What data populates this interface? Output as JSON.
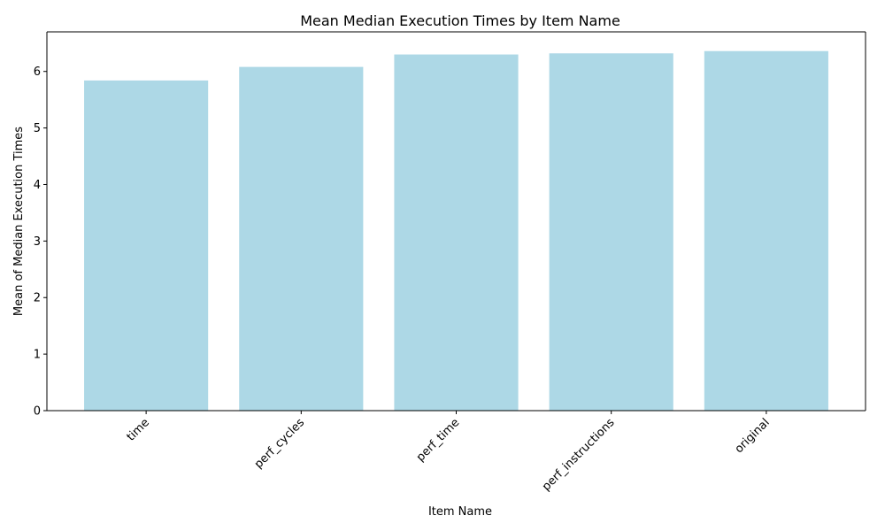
{
  "chart_data": {
    "type": "bar",
    "title": "Mean Median Execution Times by Item Name",
    "xlabel": "Item Name",
    "ylabel": "Mean of Median Execution Times",
    "categories": [
      "time",
      "perf_cycles",
      "perf_time",
      "perf_instructions",
      "original"
    ],
    "values": [
      5.84,
      6.08,
      6.3,
      6.32,
      6.36
    ],
    "ylim": [
      0,
      6.7
    ],
    "yticks": [
      "0",
      "1",
      "2",
      "3",
      "4",
      "5",
      "6"
    ],
    "bar_color": "#add8e6",
    "grid": false,
    "legend": "none"
  }
}
